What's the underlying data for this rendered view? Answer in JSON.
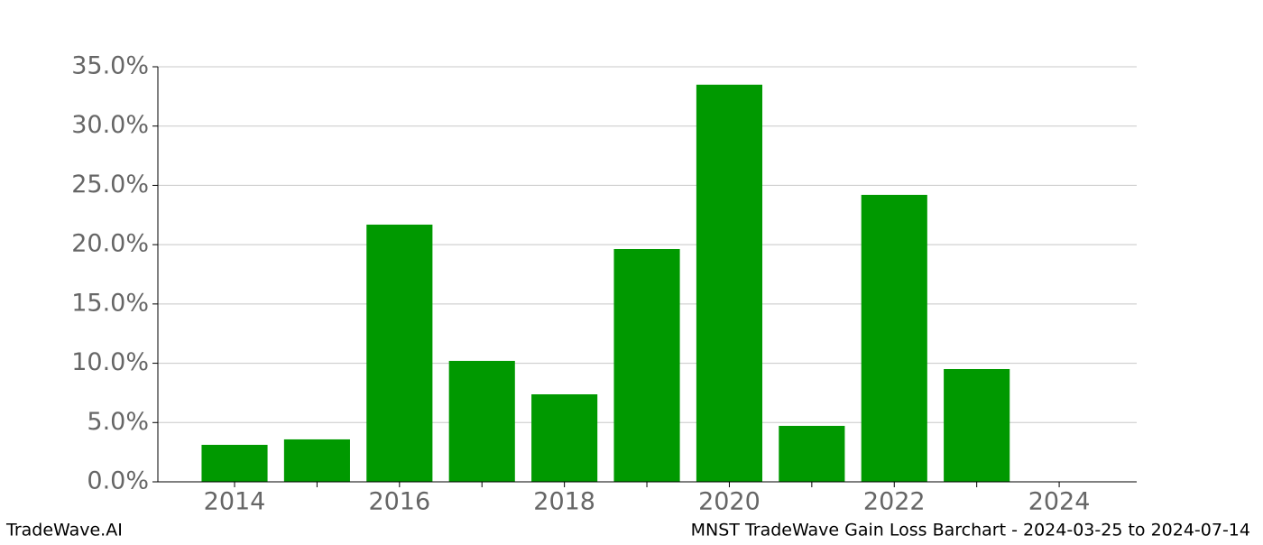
{
  "chart_data": {
    "type": "bar",
    "x": [
      2014,
      2015,
      2016,
      2017,
      2018,
      2019,
      2020,
      2021,
      2022,
      2023
    ],
    "values": [
      3.12,
      3.58,
      21.69,
      10.2,
      7.38,
      19.63,
      33.49,
      4.72,
      24.2,
      9.51
    ],
    "color": "#009900",
    "xlim": [
      2013.07,
      2024.94
    ],
    "xticks": [
      2014,
      2016,
      2018,
      2020,
      2022,
      2024
    ],
    "xminorticks": [
      2015,
      2017,
      2019,
      2021,
      2023
    ],
    "ylim": [
      0,
      35
    ],
    "yticks": [
      {
        "value": 0,
        "label": "0.0%"
      },
      {
        "value": 5,
        "label": "5.0%"
      },
      {
        "value": 10,
        "label": "10.0%"
      },
      {
        "value": 15,
        "label": "15.0%"
      },
      {
        "value": 20,
        "label": "20.0%"
      },
      {
        "value": 25,
        "label": "25.0%"
      },
      {
        "value": 30,
        "label": "30.0%"
      },
      {
        "value": 35,
        "label": "35.0%"
      }
    ],
    "grid": true
  },
  "footer": {
    "left": "TradeWave.AI",
    "right": "MNST TradeWave Gain Loss Barchart - 2024-03-25 to 2024-07-14"
  }
}
